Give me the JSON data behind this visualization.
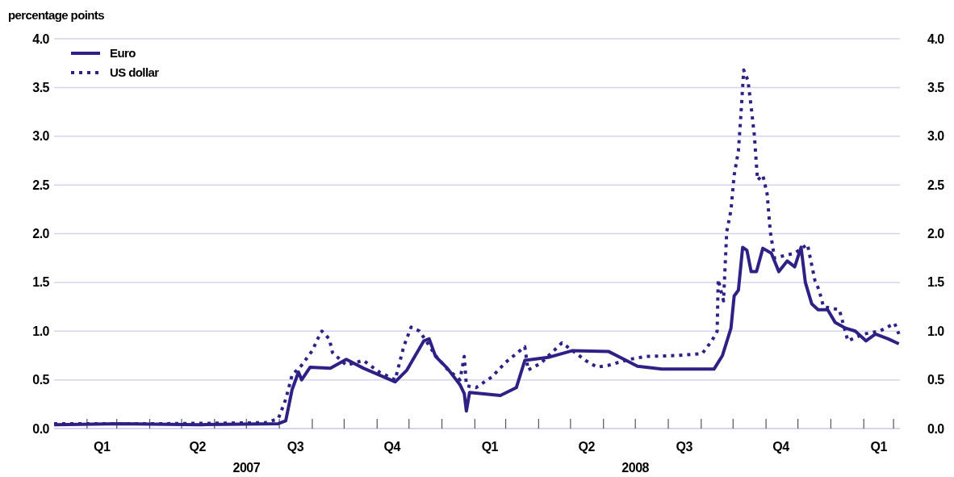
{
  "chart_data": {
    "type": "line",
    "ylabel": "percentage points",
    "legend": "top left",
    "grid": "y",
    "xlim": [
      "2007-01-01",
      "2009-03-07"
    ],
    "xticks": [
      {
        "value": "2007-02-01",
        "label": null
      },
      {
        "value": "2007-02-15",
        "label": "Q1"
      },
      {
        "value": "2007-03-01",
        "label": null
      },
      {
        "value": "2007-04-01",
        "label": null
      },
      {
        "value": "2007-05-01",
        "label": null
      },
      {
        "value": "2007-05-16",
        "label": "Q2"
      },
      {
        "value": "2007-06-01",
        "label": null
      },
      {
        "value": "2007-07-01",
        "label": null
      },
      {
        "value": "2007-08-01",
        "label": null
      },
      {
        "value": "2007-08-16",
        "label": "Q3"
      },
      {
        "value": "2007-09-01",
        "label": null
      },
      {
        "value": "2007-10-01",
        "label": null
      },
      {
        "value": "2007-11-01",
        "label": null
      },
      {
        "value": "2007-11-15",
        "label": "Q4"
      },
      {
        "value": "2007-12-01",
        "label": null
      },
      {
        "value": "2008-01-01",
        "label": null
      },
      {
        "value": "2008-02-01",
        "label": null
      },
      {
        "value": "2008-02-15",
        "label": "Q1"
      },
      {
        "value": "2008-03-01",
        "label": null
      },
      {
        "value": "2008-04-01",
        "label": null
      },
      {
        "value": "2008-05-01",
        "label": null
      },
      {
        "value": "2008-05-16",
        "label": "Q2"
      },
      {
        "value": "2008-06-01",
        "label": null
      },
      {
        "value": "2008-07-01",
        "label": null
      },
      {
        "value": "2008-08-01",
        "label": null
      },
      {
        "value": "2008-08-16",
        "label": "Q3"
      },
      {
        "value": "2008-09-01",
        "label": null
      },
      {
        "value": "2008-10-01",
        "label": null
      },
      {
        "value": "2008-11-01",
        "label": null
      },
      {
        "value": "2008-11-15",
        "label": "Q4"
      },
      {
        "value": "2008-12-01",
        "label": null
      },
      {
        "value": "2009-01-01",
        "label": null
      },
      {
        "value": "2009-02-01",
        "label": null
      },
      {
        "value": "2009-02-15",
        "label": "Q1"
      },
      {
        "value": "2009-03-01",
        "label": null
      }
    ],
    "ylim": [
      0,
      4
    ],
    "yticks": [
      {
        "value": 0,
        "label": "0.0"
      },
      0.5,
      {
        "value": 1,
        "label": "1.0"
      },
      1.5,
      {
        "value": 2,
        "label": "2.0"
      },
      2.5,
      {
        "value": 3,
        "label": "3.0"
      },
      3.5,
      {
        "value": 4,
        "label": "4.0"
      }
    ],
    "y2lim": [
      0,
      4
    ],
    "y2ticks": [
      {
        "value": 0,
        "label": "0.0"
      },
      0.5,
      {
        "value": 1,
        "label": "1.0"
      },
      1.5,
      {
        "value": 2,
        "label": "2.0"
      },
      2.5,
      {
        "value": 3,
        "label": "3.0"
      },
      3.5,
      {
        "value": 4,
        "label": "4.0"
      }
    ],
    "annotations": [
      "2007",
      "2008"
    ],
    "series": [
      {
        "name": "Euro",
        "color": "#2e2185",
        "line_style": "solid",
        "x": [
          "2007-01-01",
          "2007-03-04",
          "2007-05-19",
          "2007-07-31",
          "2007-08-07",
          "2007-08-13",
          "2007-08-19",
          "2007-08-22",
          "2007-08-30",
          "2007-09-18",
          "2007-10-03",
          "2007-10-19",
          "2007-11-03",
          "2007-11-18",
          "2007-11-29",
          "2007-12-15",
          "2007-12-20",
          "2007-12-26",
          "2008-01-06",
          "2008-01-18",
          "2008-01-22",
          "2008-01-24",
          "2008-01-27",
          "2008-02-25",
          "2008-03-11",
          "2008-03-19",
          "2008-04-10",
          "2008-05-03",
          "2008-06-06",
          "2008-07-03",
          "2008-07-26",
          "2008-09-13",
          "2008-09-21",
          "2008-09-29",
          "2008-10-02",
          "2008-10-06",
          "2008-10-10",
          "2008-10-14",
          "2008-10-18",
          "2008-10-23",
          "2008-10-29",
          "2008-11-06",
          "2008-11-13",
          "2008-11-21",
          "2008-11-28",
          "2008-12-04",
          "2008-12-08",
          "2008-12-14",
          "2008-12-20",
          "2008-12-29",
          "2009-01-05",
          "2009-01-15",
          "2009-01-24",
          "2009-02-03",
          "2009-02-12",
          "2009-02-24",
          "2009-03-06"
        ],
        "values": [
          0.04,
          0.05,
          0.04,
          0.05,
          0.08,
          0.4,
          0.58,
          0.5,
          0.63,
          0.62,
          0.71,
          0.62,
          0.55,
          0.48,
          0.6,
          0.9,
          0.92,
          0.74,
          0.62,
          0.45,
          0.36,
          0.18,
          0.37,
          0.34,
          0.42,
          0.7,
          0.73,
          0.8,
          0.79,
          0.64,
          0.61,
          0.61,
          0.75,
          1.03,
          1.36,
          1.42,
          1.86,
          1.83,
          1.61,
          1.61,
          1.85,
          1.8,
          1.61,
          1.72,
          1.66,
          1.86,
          1.5,
          1.28,
          1.22,
          1.22,
          1.09,
          1.03,
          1.0,
          0.9,
          0.97,
          0.92,
          0.87
        ]
      },
      {
        "name": "US dollar",
        "color": "#2e2185",
        "line_style": "dotted",
        "x": [
          "2007-01-01",
          "2007-04-11",
          "2007-07-19",
          "2007-07-31",
          "2007-08-07",
          "2007-08-13",
          "2007-08-22",
          "2007-09-01",
          "2007-09-07",
          "2007-09-10",
          "2007-09-17",
          "2007-09-20",
          "2007-10-03",
          "2007-10-19",
          "2007-11-03",
          "2007-11-18",
          "2007-11-26",
          "2007-12-03",
          "2007-12-11",
          "2007-12-26",
          "2008-01-06",
          "2008-01-18",
          "2008-01-22",
          "2008-01-24",
          "2008-02-02",
          "2008-02-17",
          "2008-03-01",
          "2008-03-19",
          "2008-03-22",
          "2008-04-03",
          "2008-04-23",
          "2008-05-15",
          "2008-05-26",
          "2008-06-06",
          "2008-06-25",
          "2008-07-11",
          "2008-08-10",
          "2008-09-02",
          "2008-09-11",
          "2008-09-16",
          "2008-09-17",
          "2008-09-22",
          "2008-09-25",
          "2008-09-29",
          "2008-10-02",
          "2008-10-06",
          "2008-10-08",
          "2008-10-11",
          "2008-10-15",
          "2008-10-18",
          "2008-10-21",
          "2008-10-24",
          "2008-10-29",
          "2008-11-02",
          "2008-11-05",
          "2008-11-09",
          "2008-11-28",
          "2008-12-10",
          "2008-12-17",
          "2008-12-21",
          "2008-12-25",
          "2009-01-09",
          "2009-01-17",
          "2009-02-01",
          "2009-02-16",
          "2009-03-02",
          "2009-03-06"
        ],
        "values": [
          0.05,
          0.05,
          0.06,
          0.1,
          0.3,
          0.55,
          0.65,
          0.8,
          0.94,
          1.0,
          0.92,
          0.78,
          0.65,
          0.7,
          0.58,
          0.5,
          0.84,
          1.04,
          1.0,
          0.75,
          0.61,
          0.5,
          0.74,
          0.44,
          0.42,
          0.53,
          0.68,
          0.84,
          0.6,
          0.67,
          0.88,
          0.7,
          0.63,
          0.65,
          0.71,
          0.74,
          0.75,
          0.77,
          0.9,
          1.0,
          1.53,
          1.31,
          2.02,
          2.24,
          2.6,
          2.85,
          3.16,
          3.68,
          3.57,
          3.3,
          3.01,
          2.55,
          2.6,
          2.41,
          2.02,
          1.75,
          1.8,
          1.89,
          1.52,
          1.42,
          1.25,
          1.22,
          0.9,
          0.97,
          1.0,
          1.08,
          0.97
        ]
      }
    ]
  }
}
